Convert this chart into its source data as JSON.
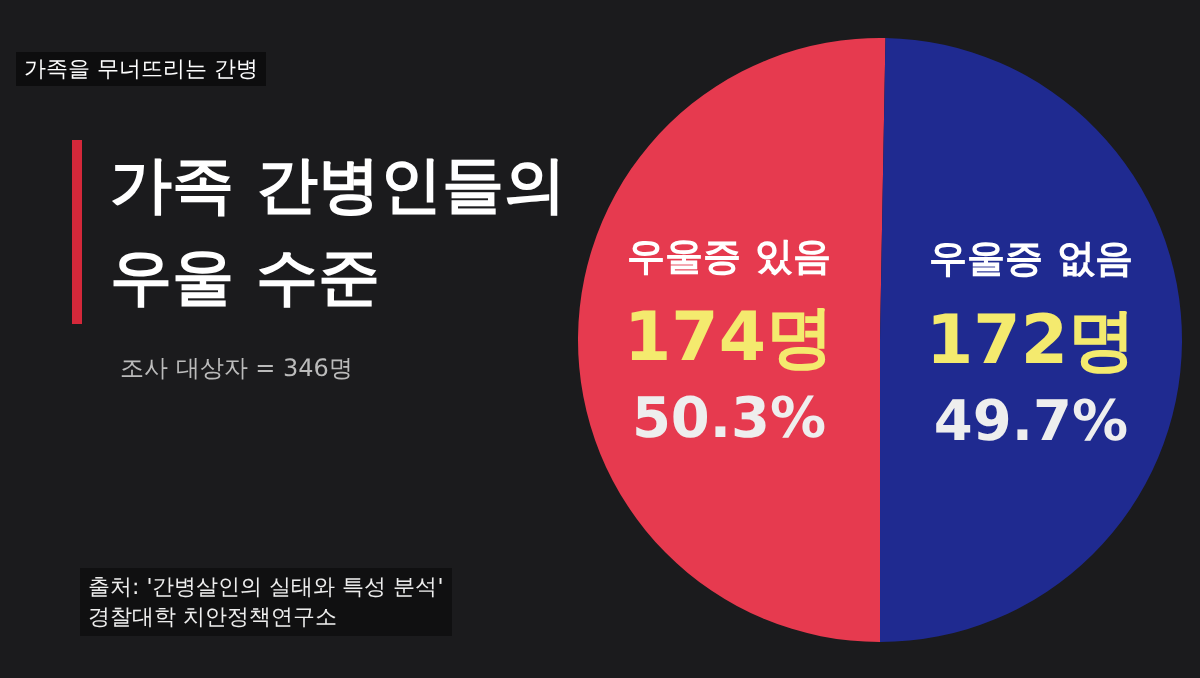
{
  "chart_data": {
    "type": "pie",
    "title": "가족 간병인들의\n우울 수준",
    "subtitle": "조사 대상자 = 346명",
    "categories": [
      "우울증 있음",
      "우울증 없음"
    ],
    "values": [
      174,
      172
    ],
    "colors": [
      "#e63a4f",
      "#1f2a90"
    ],
    "value_labels": [
      "174명\n50.3%",
      "172명\n49.7%"
    ],
    "legend": false,
    "annotations": [
      "가족을 무너뜨리는 간병",
      "출처: '간병살인의 실태와 특성 분석'\n경찰대학 치안정책연구소"
    ]
  }
}
